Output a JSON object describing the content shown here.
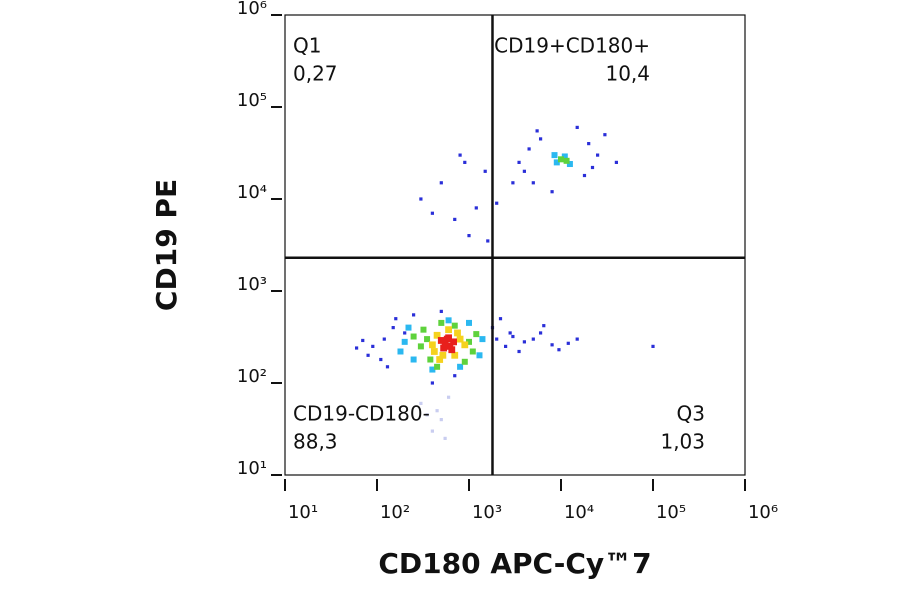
{
  "chart_data": {
    "type": "scatter",
    "xlabel": "CD180 APC-Cy™7",
    "ylabel": "CD19 PE",
    "xscale": "log",
    "yscale": "log",
    "xlim": [
      10,
      1000000
    ],
    "ylim": [
      10,
      1000000
    ],
    "xticks": [
      {
        "value": 10,
        "label": "10¹"
      },
      {
        "value": 100,
        "label": "10²"
      },
      {
        "value": 1000,
        "label": "10³"
      },
      {
        "value": 10000,
        "label": "10⁴"
      },
      {
        "value": 100000,
        "label": "10⁵"
      },
      {
        "value": 1000000,
        "label": "10⁶"
      }
    ],
    "yticks": [
      {
        "value": 10,
        "label": "10¹"
      },
      {
        "value": 100,
        "label": "10²"
      },
      {
        "value": 1000,
        "label": "10³"
      },
      {
        "value": 10000,
        "label": "10⁴"
      },
      {
        "value": 100000,
        "label": "10⁵"
      },
      {
        "value": 1000000,
        "label": "10⁶"
      }
    ],
    "gates": {
      "x": 1800,
      "y": 2300
    },
    "quadrants": [
      {
        "name": "Q1",
        "label": "0,27",
        "corner": "top-left"
      },
      {
        "name": "CD19+CD180+",
        "label": "10,4",
        "corner": "top-right"
      },
      {
        "name": "CD19-CD180-",
        "label": "88,3",
        "corner": "bottom-left"
      },
      {
        "name": "Q3",
        "label": "1,03",
        "corner": "bottom-right"
      }
    ],
    "series": [
      {
        "color": "#c9cdf0",
        "x": [
          300,
          500,
          400,
          600,
          450,
          350,
          550
        ],
        "values": [
          60,
          40,
          30,
          70,
          50,
          45,
          25
        ]
      },
      {
        "color": "#2a2fd8",
        "x": [
          120,
          90,
          150,
          110,
          70,
          2000,
          2500,
          3000,
          4000,
          5000,
          8000,
          12000,
          1800,
          6000,
          3500,
          130,
          160,
          250,
          500,
          700,
          400,
          60,
          2200,
          15000,
          100000,
          4000,
          5000,
          20000,
          25000,
          3500,
          6000,
          18000,
          30000,
          4500,
          8000,
          22000,
          5500,
          40000,
          15000,
          3000,
          300,
          700,
          1500,
          500,
          1000,
          2000,
          900,
          1200,
          400,
          1600,
          800,
          2800,
          6500,
          9500,
          200,
          80
        ],
        "values": [
          300,
          250,
          400,
          180,
          290,
          300,
          250,
          320,
          280,
          300,
          260,
          270,
          400,
          350,
          220,
          150,
          500,
          550,
          600,
          120,
          100,
          240,
          500,
          300,
          250,
          20000,
          15000,
          40000,
          30000,
          25000,
          45000,
          18000,
          50000,
          35000,
          12000,
          22000,
          55000,
          25000,
          60000,
          15000,
          10000,
          6000,
          20000,
          15000,
          4000,
          9000,
          25000,
          8000,
          7000,
          3500,
          30000,
          350,
          420,
          230,
          350,
          200
        ]
      },
      {
        "color": "#2bb8f0",
        "x": [
          200,
          180,
          1400,
          1300,
          250,
          600,
          800,
          220,
          1000,
          400,
          9000,
          11000,
          8500,
          12500
        ],
        "values": [
          280,
          220,
          300,
          200,
          180,
          480,
          150,
          400,
          450,
          140,
          25000,
          29000,
          30000,
          24000
        ]
      },
      {
        "color": "#5ed23c",
        "x": [
          300,
          350,
          1000,
          1100,
          700,
          380,
          250,
          900,
          500,
          1200,
          320,
          450,
          10000,
          11500
        ],
        "values": [
          250,
          300,
          280,
          220,
          420,
          180,
          320,
          170,
          450,
          340,
          380,
          150,
          27000,
          26000
        ]
      },
      {
        "color": "#f5d21e",
        "x": [
          400,
          800,
          700,
          450,
          520,
          750,
          900,
          420,
          600,
          480
        ],
        "values": [
          260,
          300,
          200,
          330,
          200,
          350,
          260,
          220,
          380,
          180
        ]
      },
      {
        "color": "#e8201c",
        "x": [
          550,
          620,
          500,
          680,
          600,
          530,
          650,
          580
        ],
        "values": [
          270,
          250,
          290,
          280,
          310,
          240,
          230,
          300
        ]
      }
    ]
  }
}
